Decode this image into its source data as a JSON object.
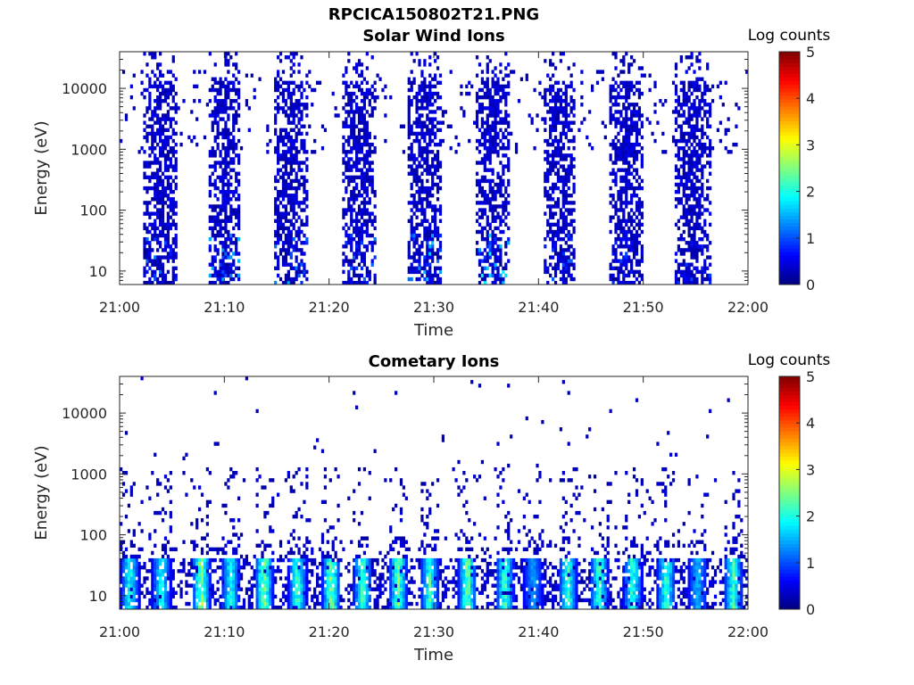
{
  "figure": {
    "title": "RPCICA150802T21.PNG"
  },
  "colormap": "jet",
  "chart_data": [
    {
      "type": "heatmap",
      "title": "Solar Wind Ions",
      "xlabel": "Time",
      "ylabel": "Energy (eV)",
      "x_ticks": [
        "21:00",
        "21:10",
        "21:20",
        "21:30",
        "21:40",
        "21:50",
        "22:00"
      ],
      "x_range_minutes": [
        0,
        60
      ],
      "y_scale": "log",
      "y_ticks": [
        "10",
        "100",
        "1000",
        "10000"
      ],
      "y_range_eV": [
        6,
        40000
      ],
      "colorbar": {
        "label": "Log counts",
        "range": [
          0,
          5
        ],
        "ticks": [
          "0",
          "1",
          "2",
          "3",
          "4",
          "5"
        ]
      },
      "grid": false,
      "sweep_bursts": [
        {
          "start_min": 2.3,
          "end_min": 5.5,
          "peak_log_counts": 1.2
        },
        {
          "start_min": 8.6,
          "end_min": 11.5,
          "peak_log_counts": 1.5
        },
        {
          "start_min": 14.8,
          "end_min": 18.0,
          "peak_log_counts": 1.6
        },
        {
          "start_min": 21.3,
          "end_min": 24.5,
          "peak_log_counts": 1.2
        },
        {
          "start_min": 27.6,
          "end_min": 30.8,
          "peak_log_counts": 1.7
        },
        {
          "start_min": 34.0,
          "end_min": 37.3,
          "peak_log_counts": 1.9
        },
        {
          "start_min": 40.4,
          "end_min": 43.6,
          "peak_log_counts": 1.1
        },
        {
          "start_min": 46.8,
          "end_min": 50.0,
          "peak_log_counts": 1.0
        },
        {
          "start_min": 53.1,
          "end_min": 56.5,
          "peak_log_counts": 1.0
        }
      ]
    },
    {
      "type": "heatmap",
      "title": "Cometary Ions",
      "xlabel": "Time",
      "ylabel": "Energy (eV)",
      "x_ticks": [
        "21:00",
        "21:10",
        "21:20",
        "21:30",
        "21:40",
        "21:50",
        "22:00"
      ],
      "x_range_minutes": [
        0,
        60
      ],
      "y_scale": "log",
      "y_ticks": [
        "10",
        "100",
        "1000",
        "10000"
      ],
      "y_range_eV": [
        6,
        40000
      ],
      "colorbar": {
        "label": "Log counts",
        "range": [
          0,
          5
        ],
        "ticks": [
          "0",
          "1",
          "2",
          "3",
          "4",
          "5"
        ]
      },
      "grid": false,
      "low_energy_band_eV": [
        6,
        40
      ],
      "hot_spots": [
        {
          "time_min": 1.0,
          "peak_log_counts": 2.4
        },
        {
          "time_min": 4.0,
          "peak_log_counts": 2.3
        },
        {
          "time_min": 7.8,
          "peak_log_counts": 3.2
        },
        {
          "time_min": 10.6,
          "peak_log_counts": 2.4
        },
        {
          "time_min": 13.8,
          "peak_log_counts": 3.0
        },
        {
          "time_min": 17.0,
          "peak_log_counts": 2.6
        },
        {
          "time_min": 20.2,
          "peak_log_counts": 3.0
        },
        {
          "time_min": 23.2,
          "peak_log_counts": 2.7
        },
        {
          "time_min": 26.6,
          "peak_log_counts": 2.9
        },
        {
          "time_min": 29.6,
          "peak_log_counts": 2.5
        },
        {
          "time_min": 33.2,
          "peak_log_counts": 2.9
        },
        {
          "time_min": 36.8,
          "peak_log_counts": 2.6
        },
        {
          "time_min": 39.5,
          "peak_log_counts": 1.6
        },
        {
          "time_min": 42.8,
          "peak_log_counts": 2.6
        },
        {
          "time_min": 45.8,
          "peak_log_counts": 2.7
        },
        {
          "time_min": 49.0,
          "peak_log_counts": 2.5
        },
        {
          "time_min": 52.2,
          "peak_log_counts": 2.7
        },
        {
          "time_min": 55.2,
          "peak_log_counts": 1.8
        },
        {
          "time_min": 58.6,
          "peak_log_counts": 2.6
        }
      ]
    }
  ]
}
